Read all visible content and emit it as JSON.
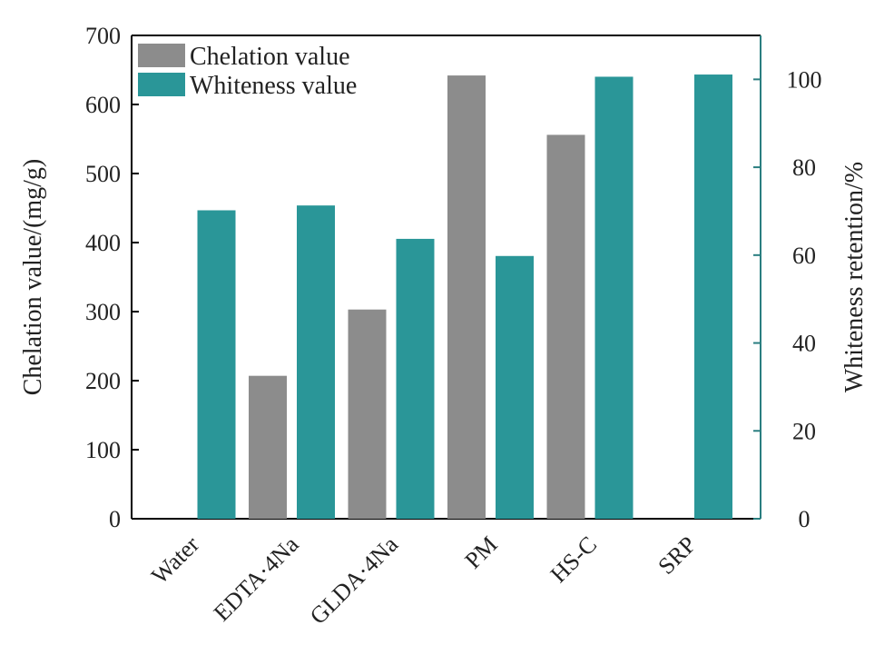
{
  "chart_data": {
    "type": "bar",
    "categories": [
      "Water",
      "EDTA·4Na",
      "GLDA·4Na",
      "PM",
      "HS-C",
      "SRP"
    ],
    "series": [
      {
        "name": "Chelation value",
        "axis": "left",
        "color": "#8c8c8c",
        "values": [
          0,
          207,
          303,
          642,
          556,
          0
        ]
      },
      {
        "name": "Whiteness value",
        "axis": "right",
        "color": "#2a9698",
        "values": [
          70.2,
          71.3,
          63.7,
          59.8,
          100.6,
          101.1
        ]
      }
    ],
    "ylabel_left": "Chelation value/(mg/g)",
    "ylabel_right": "Whiteness retention/%",
    "ylim_left": [
      0,
      700
    ],
    "yticks_left": [
      "0",
      "100",
      "200",
      "300",
      "400",
      "500",
      "600",
      "700"
    ],
    "ylim_right": [
      0,
      110
    ],
    "yticks_right": [
      "0",
      "20",
      "40",
      "60",
      "80",
      "100"
    ],
    "legend": {
      "placement": "top-left"
    },
    "grid": false,
    "colors": {
      "axis_left": "#000000",
      "axis_right": "#2a7e80"
    }
  }
}
